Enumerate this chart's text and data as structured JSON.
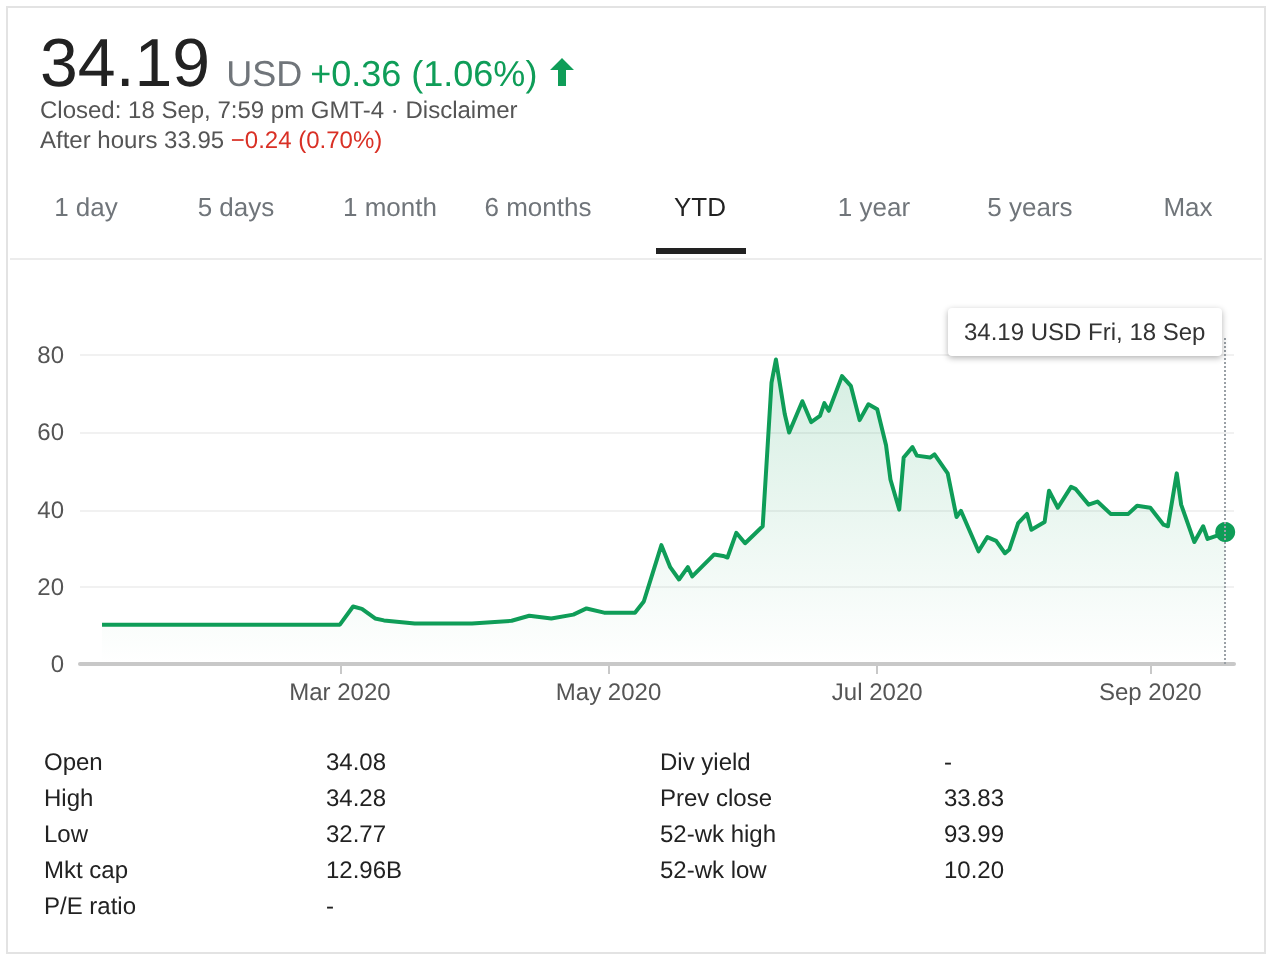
{
  "chart_data": {
    "type": "area",
    "x": [
      "2020-01-07",
      "2020-03-01",
      "2020-03-04",
      "2020-03-06",
      "2020-03-09",
      "2020-03-11",
      "2020-03-18",
      "2020-03-31",
      "2020-04-09",
      "2020-04-13",
      "2020-04-18",
      "2020-04-23",
      "2020-04-26",
      "2020-04-30",
      "2020-05-07",
      "2020-05-09",
      "2020-05-11",
      "2020-05-13",
      "2020-05-15",
      "2020-05-17",
      "2020-05-19",
      "2020-05-20",
      "2020-05-25",
      "2020-05-27",
      "2020-05-28",
      "2020-05-30",
      "2020-06-01",
      "2020-06-03",
      "2020-06-05",
      "2020-06-07",
      "2020-06-08",
      "2020-06-10",
      "2020-06-11",
      "2020-06-14",
      "2020-06-16",
      "2020-06-18",
      "2020-06-19",
      "2020-06-20",
      "2020-06-23",
      "2020-06-25",
      "2020-06-27",
      "2020-06-29",
      "2020-07-01",
      "2020-07-03",
      "2020-07-04",
      "2020-07-06",
      "2020-07-07",
      "2020-07-09",
      "2020-07-10",
      "2020-07-13",
      "2020-07-14",
      "2020-07-17",
      "2020-07-19",
      "2020-07-20",
      "2020-07-24",
      "2020-07-26",
      "2020-07-28",
      "2020-07-30",
      "2020-07-31",
      "2020-08-02",
      "2020-08-04",
      "2020-08-05",
      "2020-08-08",
      "2020-08-09",
      "2020-08-11",
      "2020-08-14",
      "2020-08-15",
      "2020-08-18",
      "2020-08-20",
      "2020-08-23",
      "2020-08-27",
      "2020-08-29",
      "2020-09-01",
      "2020-09-04",
      "2020-09-05",
      "2020-09-07",
      "2020-09-08",
      "2020-09-11",
      "2020-09-13",
      "2020-09-14",
      "2020-09-16",
      "2020-09-18"
    ],
    "series": [
      {
        "color": "#0f9d58",
        "values": [
          10.2,
          10.2,
          14.9,
          14.3,
          11.8,
          11.3,
          10.5,
          10.5,
          11.2,
          12.5,
          11.8,
          12.8,
          14.4,
          13.3,
          13.3,
          16.2,
          23.5,
          30.8,
          25.1,
          21.9,
          25.1,
          22.7,
          28.4,
          28.0,
          27.6,
          34.0,
          31.3,
          33.5,
          35.7,
          72.9,
          78.9,
          64.8,
          60.0,
          68.1,
          62.7,
          64.3,
          67.6,
          65.6,
          74.6,
          72.1,
          63.2,
          67.3,
          66.0,
          56.7,
          47.8,
          40.0,
          53.5,
          56.2,
          54.0,
          53.5,
          54.3,
          49.4,
          38.1,
          39.7,
          29.2,
          32.9,
          31.9,
          28.7,
          29.7,
          36.5,
          38.9,
          34.8,
          36.8,
          44.9,
          40.5,
          45.9,
          45.4,
          41.3,
          42.1,
          38.9,
          38.9,
          41.0,
          40.5,
          36.1,
          35.7,
          49.4,
          41.3,
          31.6,
          35.7,
          32.4,
          33.2,
          34.19
        ]
      }
    ],
    "xlim": [
      "2020-01-02",
      "2020-09-20"
    ],
    "xticks": [
      {
        "value": "2020-03-01",
        "label": "Mar 2020"
      },
      {
        "value": "2020-05-01",
        "label": "May 2020"
      },
      {
        "value": "2020-07-01",
        "label": "Jul 2020"
      },
      {
        "value": "2020-09-01",
        "label": "Sep 2020"
      }
    ],
    "ylim": [
      0,
      85
    ],
    "yticks": [
      0,
      20,
      40,
      60,
      80
    ],
    "grid": "y",
    "ref_lines": [
      {
        "axis": "x",
        "value": "2020-09-18",
        "line_style": "dotted",
        "color": "#9aa0a6"
      }
    ],
    "annotations": [
      "34.19",
      "USD",
      "+0.36 (1.06%)",
      "Closed: 18 Sep, 7:59 pm GMT-4 · Disclaimer",
      "After hours 33.95",
      "−0.24 (0.70%)",
      "1 day",
      "5 days",
      "1 month",
      "6 months",
      "YTD",
      "1 year",
      "5 years",
      "Max",
      "34.19 USD  Fri, 18 Sep",
      "Open",
      "34.08",
      "Div yield",
      "-",
      "High",
      "34.28",
      "Prev close",
      "33.83",
      "Low",
      "32.77",
      "52-wk high",
      "93.99",
      "Mkt cap",
      "12.96B",
      "52-wk low",
      "10.20",
      "P/E ratio",
      "-"
    ]
  }
}
